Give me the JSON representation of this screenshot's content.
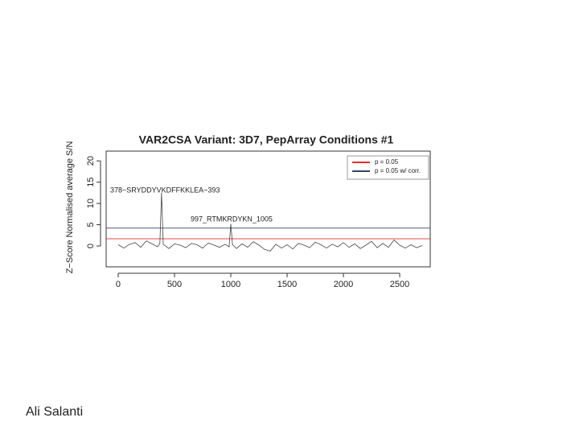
{
  "chart_data": {
    "type": "line",
    "title": "VAR2CSA Variant: 3D7, PepArray Conditions #1",
    "ylabel": "Z−Score Normalised average S/N",
    "x": [
      0,
      50,
      100,
      150,
      200,
      250,
      300,
      350,
      370,
      385,
      400,
      450,
      500,
      550,
      600,
      650,
      700,
      750,
      800,
      850,
      900,
      950,
      985,
      1000,
      1015,
      1050,
      1100,
      1150,
      1200,
      1250,
      1300,
      1350,
      1400,
      1450,
      1500,
      1550,
      1600,
      1650,
      1700,
      1750,
      1800,
      1850,
      1900,
      1950,
      2000,
      2050,
      2100,
      2150,
      2200,
      2250,
      2300,
      2350,
      2400,
      2450,
      2500,
      2550,
      2600,
      2650,
      2700
    ],
    "series": [
      {
        "color": "#444444",
        "values": [
          0.3,
          -0.5,
          0.4,
          0.8,
          -0.3,
          1.2,
          0.5,
          -0.2,
          0.6,
          12.5,
          0.4,
          -0.6,
          0.5,
          0.2,
          -0.4,
          0.6,
          0.3,
          -0.5,
          0.7,
          0.2,
          -0.3,
          0.4,
          -0.2,
          5.2,
          0.3,
          -0.6,
          0.5,
          -0.3,
          1.0,
          0.2,
          -0.8,
          -1.2,
          0.4,
          -0.5,
          0.3,
          -0.7,
          0.6,
          0.2,
          -0.4,
          0.9,
          0.3,
          -0.5,
          0.4,
          -0.2,
          0.8,
          -0.3,
          0.5,
          -0.6,
          0.2,
          1.1,
          -0.4,
          0.6,
          -0.3,
          1.4,
          0.2,
          -0.5,
          0.3,
          -0.4,
          0.1
        ]
      }
    ],
    "hlines": [
      {
        "name": "p = 0.05",
        "color": "#e03030",
        "value": 1.7
      },
      {
        "name": "p = 0.05 w/ corr.",
        "color": "#334466",
        "value": 4.2
      }
    ],
    "annotations": [
      {
        "text": "378−SRYDDYVKDFFKKLEA−393",
        "color": "#333333"
      },
      {
        "text": "997_RTMKRDYKN_1005",
        "color": "#e03030"
      }
    ],
    "xlim": [
      -107,
      2771
    ],
    "xticks": [
      0,
      500,
      1000,
      1500,
      2000,
      2500
    ],
    "ylim": [
      -4.9,
      22.3
    ],
    "yticks": [
      0,
      5,
      10,
      15,
      20
    ]
  },
  "footer": "Ali Salanti"
}
